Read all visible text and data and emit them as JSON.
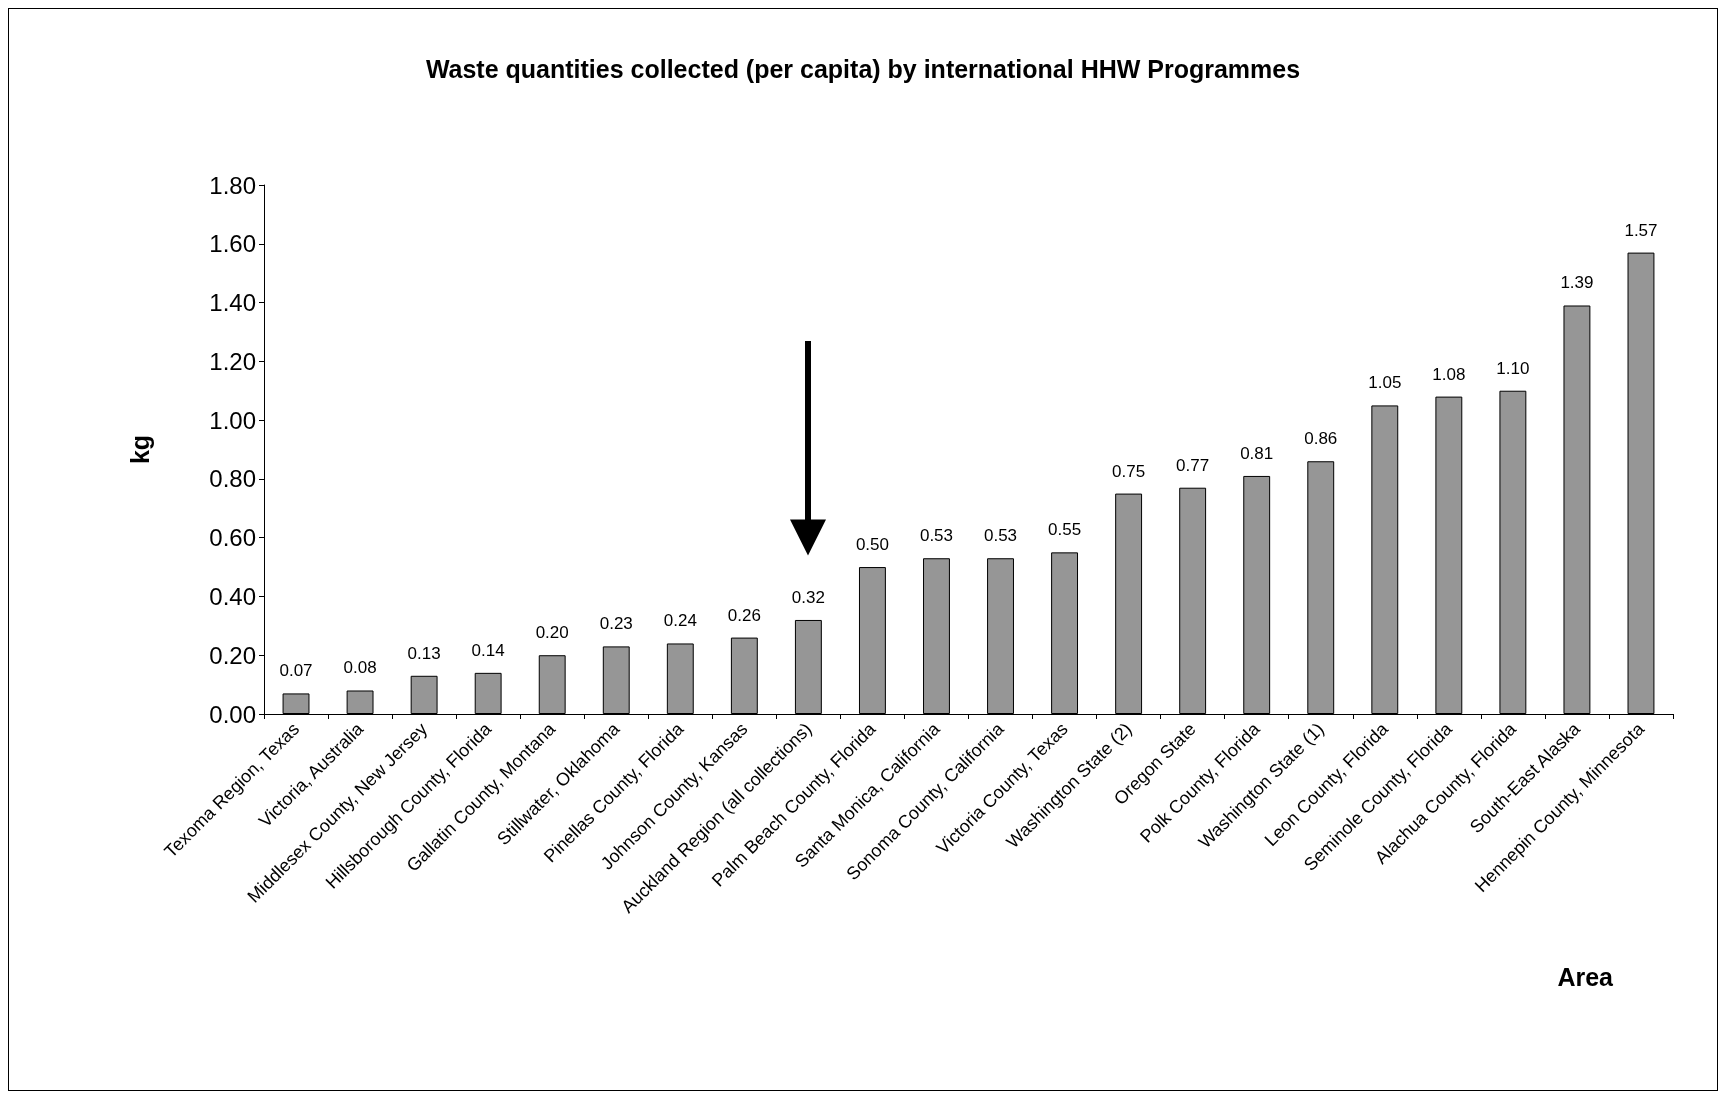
{
  "chart_data": {
    "type": "bar",
    "title": "Waste quantities collected (per capita) by international HHW Programmes",
    "xlabel": "Area",
    "ylabel": "kg",
    "categories": [
      "Texoma Region, Texas",
      "Victoria, Australia",
      "Middlesex County, New Jersey",
      "Hillsborough County, Florida",
      "Gallatin County, Montana",
      "Stillwater, Oklahoma",
      "Pinellas County, Florida",
      "Johnson County, Kansas",
      "Auckland Region (all collections)",
      "Palm Beach County, Florida",
      "Santa Monica, California",
      "Sonoma County, California",
      "Victoria County, Texas",
      "Washington State (2)",
      "Oregon State",
      "Polk County, Florida",
      "Washington State (1)",
      "Leon County, Florida",
      "Seminole County, Florida",
      "Alachua County, Florida",
      "South-East Alaska",
      "Hennepin County, Minnesota"
    ],
    "values": [
      0.07,
      0.08,
      0.13,
      0.14,
      0.2,
      0.23,
      0.24,
      0.26,
      0.32,
      0.5,
      0.53,
      0.53,
      0.55,
      0.75,
      0.77,
      0.81,
      0.86,
      1.05,
      1.08,
      1.1,
      1.39,
      1.57
    ],
    "value_labels": [
      "0.07",
      "0.08",
      "0.13",
      "0.14",
      "0.20",
      "0.23",
      "0.24",
      "0.26",
      "0.32",
      "0.50",
      "0.53",
      "0.53",
      "0.55",
      "0.75",
      "0.77",
      "0.81",
      "0.86",
      "1.05",
      "1.08",
      "1.10",
      "1.39",
      "1.57"
    ],
    "color": "#969696",
    "ylim": [
      0,
      1.8
    ],
    "yticks": [
      {
        "value": 0,
        "label": "0.00"
      },
      {
        "value": 0.2,
        "label": "0.20"
      },
      {
        "value": 0.4,
        "label": "0.40"
      },
      {
        "value": 0.6,
        "label": "0.60"
      },
      {
        "value": 0.8,
        "label": "0.80"
      },
      {
        "value": 1,
        "label": "1.00"
      },
      {
        "value": 1.2,
        "label": "1.20"
      },
      {
        "value": 1.4,
        "label": "1.40"
      },
      {
        "value": 1.6,
        "label": "1.60"
      },
      {
        "value": 1.8,
        "label": "1.80"
      }
    ],
    "grid": false
  }
}
